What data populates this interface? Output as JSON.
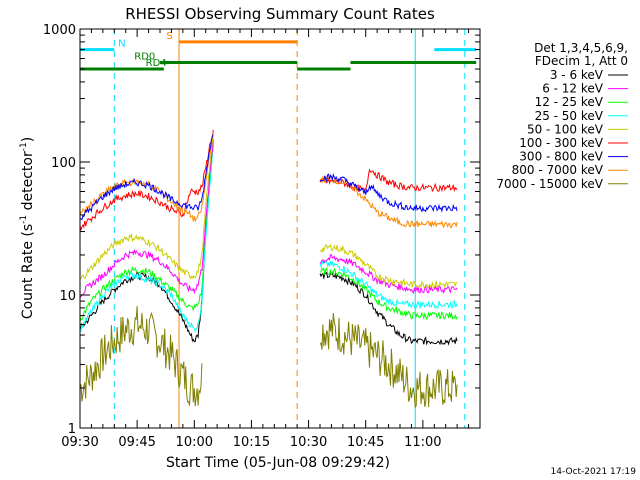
{
  "chart_data": {
    "type": "line",
    "title": "RHESSI Observing Summary Count Rates",
    "xlabel": "Start Time (05-Jun-08 09:29:42)",
    "ylabel_main": "Count Rate (s",
    "ylabel_sup1": "-1",
    "ylabel_mid": " detector",
    "ylabel_sup2": "-1",
    "ylabel_end": ")",
    "x_range_minutes": [
      0,
      105
    ],
    "y_scale": "log",
    "ylim": [
      1,
      1000
    ],
    "x_ticks": [
      {
        "t": 0,
        "label": "09:30"
      },
      {
        "t": 15,
        "label": "09:45"
      },
      {
        "t": 30,
        "label": "10:00"
      },
      {
        "t": 45,
        "label": "10:15"
      },
      {
        "t": 60,
        "label": "10:30"
      },
      {
        "t": 75,
        "label": "10:45"
      },
      {
        "t": 90,
        "label": "11:00"
      }
    ],
    "y_ticks": [
      {
        "v": 1,
        "label": "1"
      },
      {
        "v": 10,
        "label": "10"
      },
      {
        "v": 100,
        "label": "100"
      },
      {
        "v": 1000,
        "label": "1000"
      }
    ],
    "legend_header": [
      "Det 1,3,4,5,6,9,",
      "FDecim 1, Att 0"
    ],
    "series": [
      {
        "name": "3 - 6 keV",
        "color": "#000000",
        "values": [
          [
            0,
            5.5
          ],
          [
            3,
            7
          ],
          [
            6,
            9
          ],
          [
            9,
            11
          ],
          [
            12,
            13
          ],
          [
            15,
            14
          ],
          [
            18,
            13.5
          ],
          [
            21,
            12
          ],
          [
            24,
            9
          ],
          [
            27,
            6.5
          ],
          [
            29,
            5
          ],
          [
            30,
            4.5
          ],
          [
            31,
            5
          ],
          [
            32,
            9
          ],
          [
            33,
            30
          ],
          [
            34,
            70
          ],
          [
            35,
            140
          ],
          [
            63,
            14
          ],
          [
            66,
            14
          ],
          [
            69,
            13.5
          ],
          [
            72,
            12
          ],
          [
            75,
            10
          ],
          [
            78,
            7.5
          ],
          [
            81,
            6
          ],
          [
            84,
            5
          ],
          [
            87,
            4.5
          ],
          [
            90,
            4.5
          ],
          [
            93,
            4.5
          ],
          [
            96,
            4.5
          ],
          [
            99,
            4.5
          ]
        ]
      },
      {
        "name": "6 - 12 keV",
        "color": "#ff00ff",
        "values": [
          [
            0,
            10
          ],
          [
            3,
            12
          ],
          [
            6,
            14
          ],
          [
            9,
            17
          ],
          [
            12,
            20
          ],
          [
            15,
            21
          ],
          [
            18,
            20
          ],
          [
            21,
            18
          ],
          [
            24,
            15
          ],
          [
            27,
            12
          ],
          [
            29,
            11
          ],
          [
            30,
            11
          ],
          [
            31,
            12
          ],
          [
            32,
            16
          ],
          [
            33,
            35
          ],
          [
            34,
            75
          ],
          [
            35,
            150
          ],
          [
            63,
            18
          ],
          [
            66,
            19
          ],
          [
            69,
            18.5
          ],
          [
            72,
            17
          ],
          [
            75,
            15
          ],
          [
            78,
            13
          ],
          [
            81,
            12
          ],
          [
            84,
            11.5
          ],
          [
            87,
            11
          ],
          [
            90,
            11
          ],
          [
            93,
            11
          ],
          [
            96,
            11
          ],
          [
            99,
            11
          ]
        ]
      },
      {
        "name": "12 - 25 keV",
        "color": "#00ff00",
        "values": [
          [
            0,
            6.5
          ],
          [
            3,
            9
          ],
          [
            6,
            11
          ],
          [
            9,
            13
          ],
          [
            12,
            15
          ],
          [
            15,
            15.5
          ],
          [
            18,
            15
          ],
          [
            21,
            13
          ],
          [
            24,
            11
          ],
          [
            27,
            9
          ],
          [
            29,
            8
          ],
          [
            30,
            8
          ],
          [
            31,
            8.5
          ],
          [
            32,
            11
          ],
          [
            33,
            32
          ],
          [
            34,
            70
          ],
          [
            35,
            140
          ],
          [
            63,
            15
          ],
          [
            66,
            15
          ],
          [
            69,
            14.5
          ],
          [
            72,
            13
          ],
          [
            75,
            11
          ],
          [
            78,
            9
          ],
          [
            81,
            8
          ],
          [
            84,
            7.5
          ],
          [
            87,
            7
          ],
          [
            90,
            7
          ],
          [
            93,
            7
          ],
          [
            96,
            7
          ],
          [
            99,
            7
          ]
        ]
      },
      {
        "name": "25 - 50 keV",
        "color": "#00ffff",
        "values": [
          [
            0,
            5.5
          ],
          [
            3,
            7.5
          ],
          [
            6,
            10
          ],
          [
            9,
            12
          ],
          [
            12,
            14
          ],
          [
            15,
            14
          ],
          [
            18,
            13
          ],
          [
            21,
            12
          ],
          [
            24,
            10
          ],
          [
            27,
            7
          ],
          [
            29,
            6
          ],
          [
            30,
            5.5
          ],
          [
            31,
            6
          ],
          [
            32,
            9
          ],
          [
            33,
            28
          ],
          [
            34,
            65
          ],
          [
            35,
            135
          ],
          [
            63,
            17
          ],
          [
            66,
            17
          ],
          [
            69,
            16
          ],
          [
            72,
            14
          ],
          [
            75,
            12
          ],
          [
            78,
            10
          ],
          [
            81,
            9
          ],
          [
            84,
            8.5
          ],
          [
            87,
            8.5
          ],
          [
            90,
            8.5
          ],
          [
            93,
            8.5
          ],
          [
            96,
            8.5
          ],
          [
            99,
            8.5
          ]
        ]
      },
      {
        "name": "50 - 100 keV",
        "color": "#cccc00",
        "values": [
          [
            0,
            13
          ],
          [
            3,
            16
          ],
          [
            6,
            20
          ],
          [
            9,
            24
          ],
          [
            12,
            27
          ],
          [
            15,
            27
          ],
          [
            18,
            25
          ],
          [
            21,
            22
          ],
          [
            24,
            18
          ],
          [
            27,
            15
          ],
          [
            29,
            14
          ],
          [
            30,
            14
          ],
          [
            31,
            15
          ],
          [
            32,
            20
          ],
          [
            33,
            45
          ],
          [
            34,
            90
          ],
          [
            35,
            160
          ],
          [
            63,
            22
          ],
          [
            66,
            23
          ],
          [
            69,
            22
          ],
          [
            72,
            20
          ],
          [
            75,
            17
          ],
          [
            78,
            14
          ],
          [
            81,
            13
          ],
          [
            84,
            12.5
          ],
          [
            87,
            12
          ],
          [
            90,
            12
          ],
          [
            93,
            12
          ],
          [
            96,
            12
          ],
          [
            99,
            12
          ]
        ]
      },
      {
        "name": "100 - 300 keV",
        "color": "#ff0000",
        "values": [
          [
            0,
            32
          ],
          [
            3,
            38
          ],
          [
            6,
            45
          ],
          [
            9,
            52
          ],
          [
            12,
            56
          ],
          [
            15,
            58
          ],
          [
            18,
            55
          ],
          [
            21,
            50
          ],
          [
            24,
            44
          ],
          [
            27,
            40
          ],
          [
            29,
            60
          ],
          [
            31,
            60
          ],
          [
            32,
            65
          ],
          [
            33,
            90
          ],
          [
            34,
            130
          ],
          [
            35,
            170
          ],
          [
            63,
            70
          ],
          [
            66,
            72
          ],
          [
            69,
            70
          ],
          [
            72,
            65
          ],
          [
            75,
            60
          ],
          [
            76,
            90
          ],
          [
            78,
            80
          ],
          [
            81,
            70
          ],
          [
            84,
            66
          ],
          [
            87,
            64
          ],
          [
            90,
            64
          ],
          [
            93,
            64
          ],
          [
            96,
            64
          ],
          [
            99,
            64
          ]
        ]
      },
      {
        "name": "300 - 800 keV",
        "color": "#0000ff",
        "values": [
          [
            0,
            38
          ],
          [
            3,
            45
          ],
          [
            6,
            55
          ],
          [
            9,
            63
          ],
          [
            12,
            68
          ],
          [
            15,
            70
          ],
          [
            18,
            67
          ],
          [
            21,
            60
          ],
          [
            24,
            52
          ],
          [
            27,
            48
          ],
          [
            29,
            46
          ],
          [
            30,
            45
          ],
          [
            31,
            45
          ],
          [
            32,
            52
          ],
          [
            33,
            80
          ],
          [
            34,
            125
          ],
          [
            35,
            165
          ],
          [
            63,
            76
          ],
          [
            66,
            77
          ],
          [
            69,
            74
          ],
          [
            72,
            66
          ],
          [
            75,
            58
          ],
          [
            76,
            67
          ],
          [
            78,
            58
          ],
          [
            81,
            50
          ],
          [
            84,
            47
          ],
          [
            87,
            45
          ],
          [
            90,
            45
          ],
          [
            93,
            45
          ],
          [
            96,
            45
          ],
          [
            99,
            45
          ]
        ]
      },
      {
        "name": "800 - 7000 keV",
        "color": "#ff8800",
        "values": [
          [
            0,
            40
          ],
          [
            3,
            48
          ],
          [
            6,
            57
          ],
          [
            9,
            65
          ],
          [
            12,
            70
          ],
          [
            15,
            71
          ],
          [
            18,
            68
          ],
          [
            21,
            60
          ],
          [
            24,
            50
          ],
          [
            27,
            43
          ],
          [
            29,
            40
          ],
          [
            30,
            37
          ],
          [
            31,
            38
          ],
          [
            32,
            45
          ],
          [
            33,
            70
          ],
          [
            34,
            115
          ],
          [
            35,
            160
          ],
          [
            63,
            74
          ],
          [
            66,
            74
          ],
          [
            69,
            71
          ],
          [
            72,
            63
          ],
          [
            75,
            52
          ],
          [
            78,
            42
          ],
          [
            81,
            38
          ],
          [
            84,
            35
          ],
          [
            87,
            34
          ],
          [
            90,
            34
          ],
          [
            93,
            34
          ],
          [
            96,
            34
          ],
          [
            99,
            34
          ]
        ]
      },
      {
        "name": "7000 - 15000 keV",
        "color": "#808000",
        "values": [
          [
            0,
            2
          ],
          [
            3,
            2.5
          ],
          [
            6,
            3.5
          ],
          [
            9,
            4.5
          ],
          [
            12,
            5.5
          ],
          [
            15,
            6
          ],
          [
            18,
            5.5
          ],
          [
            21,
            4.5
          ],
          [
            24,
            3.5
          ],
          [
            27,
            2.5
          ],
          [
            29,
            2
          ],
          [
            30,
            2
          ],
          [
            31,
            2
          ],
          [
            32,
            2.5
          ],
          [
            63,
            5.5
          ],
          [
            66,
            5.5
          ],
          [
            69,
            5
          ],
          [
            72,
            4.5
          ],
          [
            75,
            4
          ],
          [
            78,
            3.5
          ],
          [
            81,
            3
          ],
          [
            84,
            2.5
          ],
          [
            87,
            2
          ],
          [
            90,
            2
          ],
          [
            93,
            2
          ],
          [
            96,
            2
          ],
          [
            99,
            2
          ]
        ]
      }
    ],
    "state_bars": [
      {
        "name": "N",
        "color": "#00e0ff",
        "level": 700,
        "label": "N",
        "label_t": 11,
        "segments": [
          [
            0,
            9
          ],
          [
            93,
            104
          ]
        ]
      },
      {
        "name": "S",
        "color": "#ff8000",
        "level": 800,
        "label": "S",
        "label_t": 23.5,
        "segments": [
          [
            26,
            57
          ]
        ]
      },
      {
        "name": "RD0",
        "color": "#008000",
        "level": 560,
        "label": "RD0",
        "label_t": 17,
        "segments": [
          [
            21,
            57
          ],
          [
            71,
            104
          ]
        ]
      },
      {
        "name": "RD4",
        "color": "#008000",
        "level": 500,
        "label": "RD4",
        "label_t": 20,
        "segments": [
          [
            0,
            22
          ],
          [
            57,
            71
          ]
        ]
      }
    ],
    "markers": [
      {
        "t": 0,
        "color": "#00e0ff",
        "style": "solid"
      },
      {
        "t": 9,
        "color": "#00e0ff",
        "style": "dashed"
      },
      {
        "t": 26,
        "color": "#ff8000",
        "style": "solid"
      },
      {
        "t": 57,
        "color": "#ff8000",
        "style": "dashed"
      },
      {
        "t": 88,
        "color": "#00e0ff",
        "style": "solid"
      },
      {
        "t": 101,
        "color": "#00e0ff",
        "style": "dashed"
      }
    ],
    "footer_date": "14-Oct-2021 17:19"
  }
}
